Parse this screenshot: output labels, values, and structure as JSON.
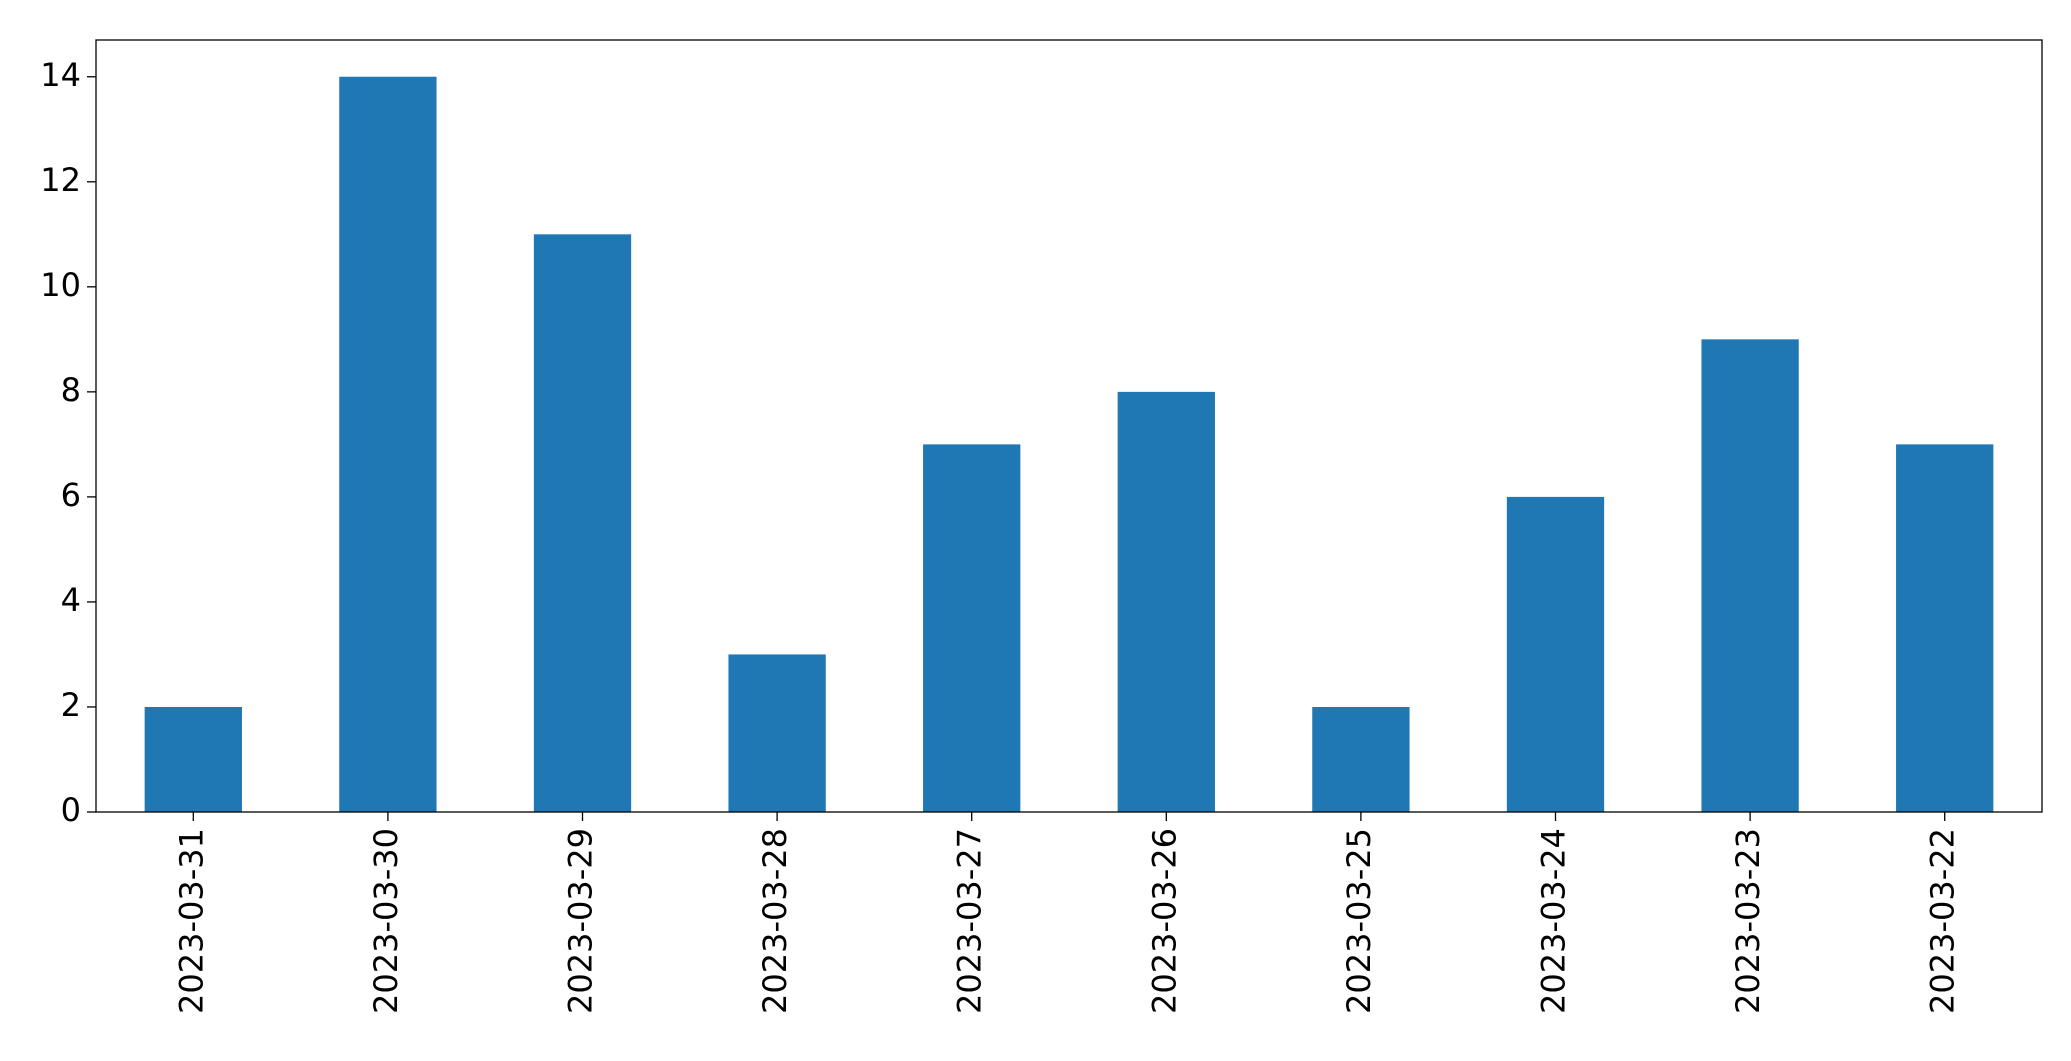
{
  "chart_data": {
    "type": "bar",
    "categories": [
      "2023-03-31",
      "2023-03-30",
      "2023-03-29",
      "2023-03-28",
      "2023-03-27",
      "2023-03-26",
      "2023-03-25",
      "2023-03-24",
      "2023-03-23",
      "2023-03-22"
    ],
    "values": [
      2,
      14,
      11,
      3,
      7,
      8,
      2,
      6,
      9,
      7
    ],
    "color": "#1f77b4",
    "ylim": [
      0,
      14.7
    ],
    "yticks": [
      0,
      2,
      4,
      6,
      8,
      10,
      12,
      14
    ],
    "grid": false
  }
}
